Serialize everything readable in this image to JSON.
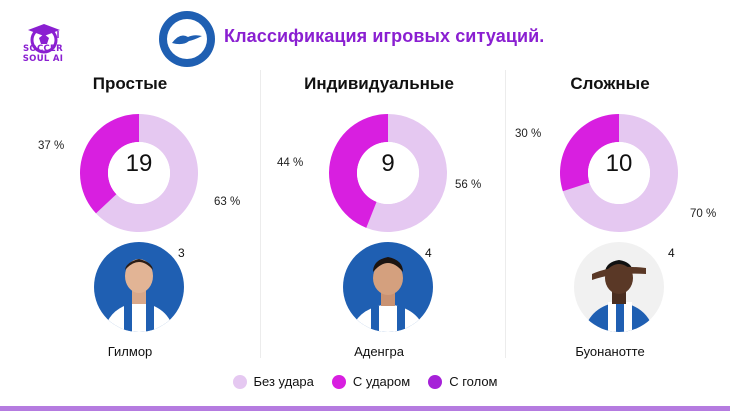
{
  "brand": {
    "line1": "SOCCER",
    "line2": "SOUL AI"
  },
  "header": {
    "title": "Классификация игровых ситуаций."
  },
  "colors": {
    "no_shot": "#e5c8f1",
    "shot": "#d81fe0",
    "goal": "#a621d8",
    "accent": "#8a1fd1",
    "brighton_blue": "#1f5fb2"
  },
  "legend": [
    {
      "label": "Без удара",
      "color": "#e5c8f1"
    },
    {
      "label": "С ударом",
      "color": "#d81fe0"
    },
    {
      "label": "С голом",
      "color": "#a621d8"
    }
  ],
  "chart_data": [
    {
      "type": "pie",
      "title": "Простые",
      "total": "19",
      "slices": [
        {
          "name": "Без удара",
          "value": 63,
          "label": "63 %"
        },
        {
          "name": "С ударом",
          "value": 37,
          "label": "37 %"
        }
      ],
      "player": {
        "name": "Гилмор",
        "count": "3"
      }
    },
    {
      "type": "pie",
      "title": "Индивидуальные",
      "total": "9",
      "slices": [
        {
          "name": "Без удара",
          "value": 56,
          "label": "56 %"
        },
        {
          "name": "С ударом",
          "value": 44,
          "label": "44 %"
        }
      ],
      "player": {
        "name": "Аденгра",
        "count": "4"
      }
    },
    {
      "type": "pie",
      "title": "Сложные",
      "total": "10",
      "slices": [
        {
          "name": "Без удара",
          "value": 70,
          "label": "70 %"
        },
        {
          "name": "С ударом",
          "value": 30,
          "label": "30 %"
        }
      ],
      "player": {
        "name": "Буонанотте",
        "count": "4"
      }
    }
  ]
}
